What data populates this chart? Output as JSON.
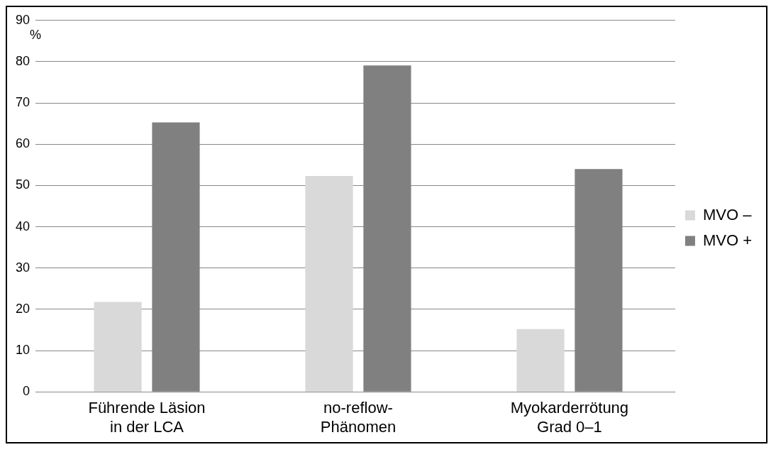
{
  "chart_data": {
    "type": "bar",
    "ylabel": "%",
    "categories": [
      "Führende Läsion\nin der LCA",
      "no-reflow-\nPhänomen",
      "Myokarderrötung\nGrad 0–1"
    ],
    "series": [
      {
        "name": "MVO –",
        "color": "#d9d9d9",
        "values": [
          21.8,
          52.3,
          15.2
        ]
      },
      {
        "name": "MVO +",
        "color": "#808080",
        "values": [
          65.3,
          79.1,
          54.0
        ]
      }
    ],
    "ylim": [
      0,
      90
    ],
    "yticks": [
      0,
      10,
      20,
      30,
      40,
      50,
      60,
      70,
      80,
      90
    ],
    "grid": "y",
    "legend": "right"
  }
}
